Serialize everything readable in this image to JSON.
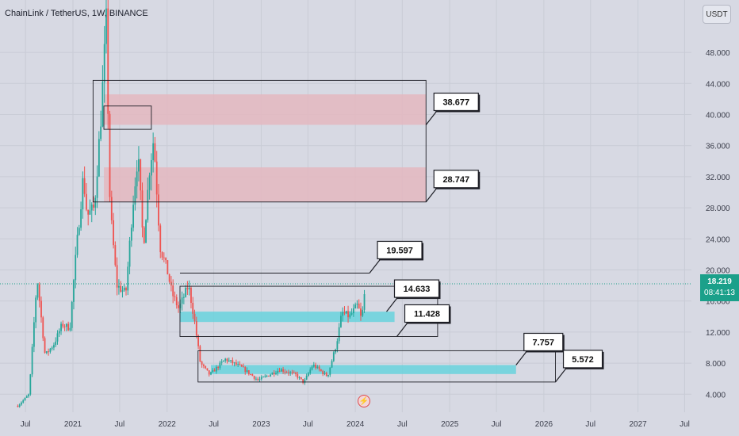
{
  "header": {
    "title": "ChainLink / TetherUS, 1W, BINANCE"
  },
  "controls": {
    "currency_button": "USDT"
  },
  "last_price": {
    "value": "18.219",
    "countdown": "08:41:13"
  },
  "colors": {
    "up": "#26a69a",
    "down": "#ef5350",
    "supply_zone": "#e4b7c0",
    "demand_zone": "#6fd3dd",
    "price_tag": "#1ba08a"
  },
  "icons": {
    "event": "flash-icon"
  },
  "chart_data": {
    "type": "candlestick",
    "title": "ChainLink / TetherUS, 1W, BINANCE",
    "y_axis": {
      "ticks": [
        "4.000",
        "8.000",
        "12.000",
        "16.000",
        "20.000",
        "24.000",
        "28.000",
        "32.000",
        "36.000",
        "40.000",
        "44.000",
        "48.000"
      ],
      "range": [
        2.2,
        52.5
      ]
    },
    "x_axis": {
      "ticks": [
        "Jul",
        "2021",
        "Jul",
        "2022",
        "Jul",
        "2023",
        "Jul",
        "2024",
        "Jul",
        "2025",
        "Jul",
        "2026",
        "Jul",
        "2027",
        "Jul"
      ]
    },
    "price_path": [
      [
        "2020-06-01",
        2.5
      ],
      [
        "2020-07-15",
        4.0
      ],
      [
        "2020-08-15",
        19.0
      ],
      [
        "2020-09-15",
        9.0
      ],
      [
        "2020-10-20",
        10.5
      ],
      [
        "2020-11-20",
        13.0
      ],
      [
        "2020-12-20",
        12.5
      ],
      [
        "2021-01-10",
        21.0
      ],
      [
        "2021-02-10",
        32.0
      ],
      [
        "2021-02-25",
        27.0
      ],
      [
        "2021-03-25",
        28.0
      ],
      [
        "2021-04-20",
        40.0
      ],
      [
        "2021-05-10",
        52.0
      ],
      [
        "2021-05-25",
        28.0
      ],
      [
        "2021-06-20",
        18.0
      ],
      [
        "2021-07-25",
        17.0
      ],
      [
        "2021-08-20",
        28.0
      ],
      [
        "2021-09-10",
        35.0
      ],
      [
        "2021-10-01",
        23.0
      ],
      [
        "2021-10-25",
        33.0
      ],
      [
        "2021-11-10",
        37.0
      ],
      [
        "2021-12-05",
        23.0
      ],
      [
        "2022-01-01",
        20.0
      ],
      [
        "2022-01-20",
        17.0
      ],
      [
        "2022-02-15",
        15.0
      ],
      [
        "2022-03-25",
        18.0
      ],
      [
        "2022-04-15",
        14.0
      ],
      [
        "2022-05-10",
        8.0
      ],
      [
        "2022-06-15",
        6.5
      ],
      [
        "2022-08-15",
        8.5
      ],
      [
        "2022-10-15",
        7.5
      ],
      [
        "2022-12-20",
        5.8
      ],
      [
        "2023-03-15",
        7.2
      ],
      [
        "2023-05-15",
        6.5
      ],
      [
        "2023-06-15",
        5.5
      ],
      [
        "2023-07-20",
        7.8
      ],
      [
        "2023-09-15",
        6.3
      ],
      [
        "2023-10-20",
        10.5
      ],
      [
        "2023-11-10",
        14.5
      ],
      [
        "2023-12-10",
        14.0
      ],
      [
        "2024-01-10",
        15.5
      ],
      [
        "2024-01-25",
        13.5
      ],
      [
        "2024-02-10",
        18.2
      ]
    ],
    "zones": [
      {
        "kind": "supply",
        "low": 38.677,
        "high": 42.6,
        "from": "2021-05-01",
        "to": "2024-10-01"
      },
      {
        "kind": "supply",
        "low": 28.747,
        "high": 33.2,
        "from": "2021-05-01",
        "to": "2024-10-01"
      },
      {
        "kind": "demand",
        "low": 13.3,
        "high": 14.633,
        "from": "2022-02-20",
        "to": "2024-06-01"
      },
      {
        "kind": "demand",
        "low": 6.6,
        "high": 7.757,
        "from": "2022-06-20",
        "to": "2025-09-15"
      }
    ],
    "boxes": [
      {
        "low": 28.747,
        "high": 44.4,
        "from": "2021-03-20",
        "to": "2024-10-01"
      },
      {
        "low": 38.1,
        "high": 41.1,
        "from": "2021-05-01",
        "to": "2021-11-01"
      },
      {
        "low": 11.428,
        "high": 17.9,
        "from": "2022-02-20",
        "to": "2024-11-15"
      },
      {
        "low": 5.572,
        "high": 9.6,
        "from": "2022-05-01",
        "to": "2026-02-15"
      }
    ],
    "level_lines": [
      {
        "value": 19.597,
        "from": "2022-02-20",
        "to": "2024-02-25"
      }
    ],
    "callouts": [
      {
        "label": "38.677",
        "value": 38.677,
        "date": "2024-10-01"
      },
      {
        "label": "28.747",
        "value": 28.747,
        "date": "2024-10-01"
      },
      {
        "label": "19.597",
        "value": 19.597,
        "date": "2024-02-25"
      },
      {
        "label": "14.633",
        "value": 14.633,
        "date": "2024-05-01"
      },
      {
        "label": "11.428",
        "value": 11.428,
        "date": "2024-06-10"
      },
      {
        "label": "7.757",
        "value": 7.757,
        "date": "2025-09-15"
      },
      {
        "label": "5.572",
        "value": 5.572,
        "date": "2026-02-15"
      }
    ],
    "last_price": 18.219
  }
}
